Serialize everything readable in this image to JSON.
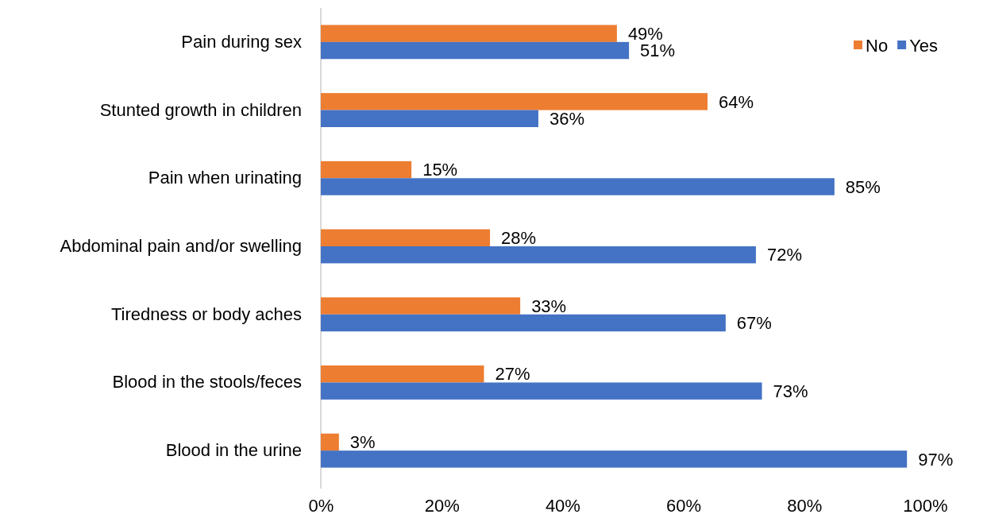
{
  "chart_data": {
    "type": "bar",
    "orientation": "horizontal",
    "categories": [
      "Pain during sex",
      "Stunted growth in children",
      "Pain when urinating",
      "Abdominal pain and/or swelling",
      "Tiredness or body aches",
      "Blood in the stools/feces",
      "Blood in the urine"
    ],
    "series": [
      {
        "name": "No",
        "color": "#ed7d31",
        "values": [
          49,
          64,
          15,
          28,
          33,
          27,
          3
        ],
        "value_labels": [
          "49%",
          "64%",
          "15%",
          "28%",
          "33%",
          "27%",
          "3%"
        ]
      },
      {
        "name": "Yes",
        "color": "#4472c4",
        "values": [
          51,
          36,
          85,
          72,
          67,
          73,
          97
        ],
        "value_labels": [
          "51%",
          "36%",
          "85%",
          "72%",
          "67%",
          "73%",
          "97%"
        ]
      }
    ],
    "xlim": [
      0,
      100
    ],
    "xticks": [
      {
        "value": 0,
        "label": "0%"
      },
      {
        "value": 20,
        "label": "20%"
      },
      {
        "value": 40,
        "label": "40%"
      },
      {
        "value": 60,
        "label": "60%"
      },
      {
        "value": 80,
        "label": "80%"
      },
      {
        "value": 100,
        "label": "100%"
      }
    ],
    "grid": false,
    "legend": "top right"
  }
}
